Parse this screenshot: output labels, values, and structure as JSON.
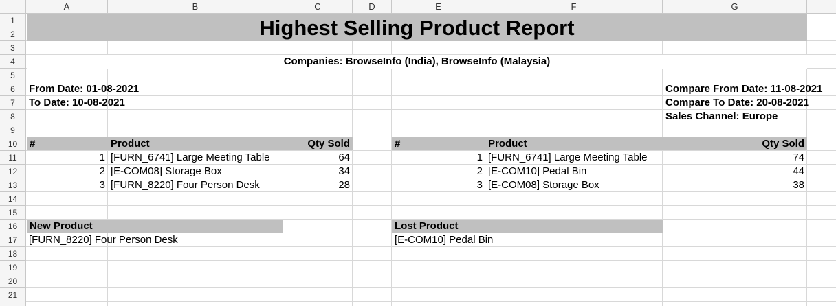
{
  "columns": [
    "A",
    "B",
    "C",
    "D",
    "E",
    "F",
    "G"
  ],
  "rows": [
    "1",
    "2",
    "3",
    "4",
    "5",
    "6",
    "7",
    "8",
    "9",
    "10",
    "11",
    "12",
    "13",
    "14",
    "15",
    "16",
    "17",
    "18",
    "19",
    "20",
    "21"
  ],
  "report": {
    "title": "Highest Selling Product Report",
    "companies": "Companies: BrowseInfo (India), BrowseInfo (Malaysia)",
    "from_date": "From Date: 01-08-2021",
    "to_date": "To Date: 10-08-2021",
    "compare_from": "Compare From Date: 11-08-2021",
    "compare_to": "Compare To Date: 20-08-2021",
    "sales_channel": "Sales Channel: Europe"
  },
  "left_table": {
    "headers": [
      "#",
      "Product",
      "Qty Sold"
    ],
    "rows": [
      {
        "num": "1",
        "product": "[FURN_6741] Large Meeting Table",
        "qty": "64"
      },
      {
        "num": "2",
        "product": "[E-COM08] Storage Box",
        "qty": "34"
      },
      {
        "num": "3",
        "product": "[FURN_8220] Four Person Desk",
        "qty": "28"
      }
    ]
  },
  "right_table": {
    "headers": [
      "#",
      "Product",
      "Qty Sold"
    ],
    "rows": [
      {
        "num": "1",
        "product": "[FURN_6741] Large Meeting Table",
        "qty": "74"
      },
      {
        "num": "2",
        "product": "[E-COM10] Pedal Bin",
        "qty": "44"
      },
      {
        "num": "3",
        "product": "[E-COM08] Storage Box",
        "qty": "38"
      }
    ]
  },
  "new_product": {
    "header": "New Product",
    "value": "[FURN_8220] Four Person Desk"
  },
  "lost_product": {
    "header": "Lost Product",
    "value": "[E-COM10] Pedal Bin"
  }
}
